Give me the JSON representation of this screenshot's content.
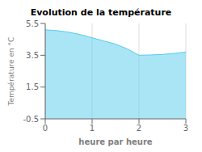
{
  "chart_data": {
    "type": "area",
    "title": "Evolution de la température",
    "xlabel": "heure par heure",
    "ylabel": "Température en °C",
    "x": [
      0,
      0.25,
      0.5,
      0.75,
      1.0,
      1.25,
      1.5,
      1.75,
      2.0,
      2.25,
      2.5,
      2.75,
      3.0
    ],
    "values": [
      5.1,
      5.05,
      4.95,
      4.8,
      4.6,
      4.4,
      4.2,
      3.9,
      3.5,
      3.52,
      3.55,
      3.62,
      3.7
    ],
    "xlim": [
      0,
      3
    ],
    "ylim": [
      -0.5,
      5.5
    ],
    "xticks": [
      0,
      1,
      2,
      3
    ],
    "yticks": [
      -0.5,
      1.5,
      3.5,
      5.5
    ],
    "color": "#55ccee",
    "grid": "x"
  }
}
